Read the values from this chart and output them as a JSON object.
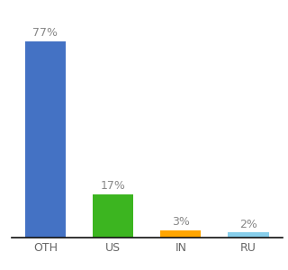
{
  "categories": [
    "OTH",
    "US",
    "IN",
    "RU"
  ],
  "values": [
    77,
    17,
    3,
    2
  ],
  "bar_colors": [
    "#4472C4",
    "#3CB520",
    "#FFA500",
    "#87CEEB"
  ],
  "labels": [
    "77%",
    "17%",
    "3%",
    "2%"
  ],
  "ylim": [
    0,
    88
  ],
  "label_color": "#888888",
  "label_fontsize": 9,
  "tick_fontsize": 9,
  "background_color": "#ffffff",
  "bar_width": 0.6
}
